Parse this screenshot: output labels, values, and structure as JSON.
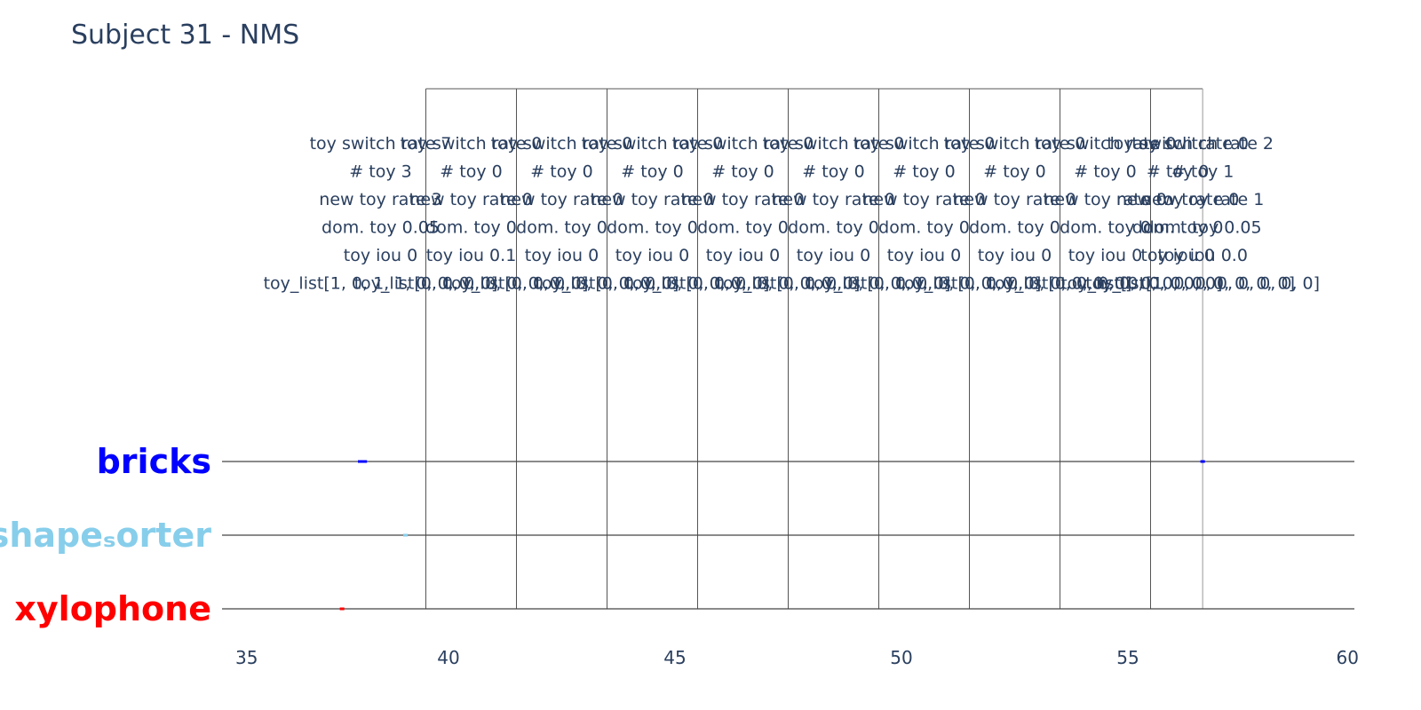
{
  "chart_data": {
    "type": "scatter",
    "title": "Subject 31 - NMS",
    "xlabel": "",
    "ylabel": "",
    "xlim": [
      35,
      60
    ],
    "xticks": [
      35,
      40,
      45,
      50,
      55,
      60
    ],
    "grid": false,
    "categories": [
      {
        "label": "bricks",
        "color": "#0000ff"
      },
      {
        "label": "shape_sorter",
        "display": "shapeₛorter",
        "color": "#87ceeb"
      },
      {
        "label": "xylophone",
        "color": "#ff0000"
      }
    ],
    "events": [
      {
        "category": "bricks",
        "start": 38.0,
        "end": 38.2
      },
      {
        "category": "shape_sorter",
        "start": 39.0,
        "end": 39.1
      },
      {
        "category": "xylophone",
        "start": 37.6,
        "end": 37.7
      },
      {
        "category": "bricks",
        "start": 56.6,
        "end": 56.7
      }
    ],
    "segment_boundaries": [
      39.5,
      41.5,
      43.5,
      45.5,
      47.5,
      49.5,
      51.5,
      53.5,
      55.5,
      56.65
    ],
    "annotations": [
      {
        "x": 38.5,
        "lines": [
          "toy switch rate 7",
          "# toy 3",
          "new toy rate 3",
          "dom. toy 0.05",
          "toy iou 0",
          "toy_list[1, 0, 1, 1, 0, 0, 0, 0]"
        ]
      },
      {
        "x": 40.5,
        "lines": [
          "toy switch rate 0",
          "# toy 0",
          "new toy rate 0",
          "dom. toy 0",
          "toy iou 0.1",
          "toy_list[0, 0, 0, 0, 0, 0, 0, 0]"
        ]
      },
      {
        "x": 42.5,
        "lines": [
          "toy switch rate 0",
          "# toy 0",
          "new toy rate 0",
          "dom. toy 0",
          "toy iou 0",
          "toy_list[0, 0, 0, 0, 0, 0, 0, 0]"
        ]
      },
      {
        "x": 44.5,
        "lines": [
          "toy switch rate 0",
          "# toy 0",
          "new toy rate 0",
          "dom. toy 0",
          "toy iou 0",
          "toy_list[0, 0, 0, 0, 0, 0, 0, 0]"
        ]
      },
      {
        "x": 46.5,
        "lines": [
          "toy switch rate 0",
          "# toy 0",
          "new toy rate 0",
          "dom. toy 0",
          "toy iou 0",
          "toy_list[0, 0, 0, 0, 0, 0, 0, 0]"
        ]
      },
      {
        "x": 48.5,
        "lines": [
          "toy switch rate 0",
          "# toy 0",
          "new toy rate 0",
          "dom. toy 0",
          "toy iou 0",
          "toy_list[0, 0, 0, 0, 0, 0, 0, 0]"
        ]
      },
      {
        "x": 50.5,
        "lines": [
          "toy switch rate 0",
          "# toy 0",
          "new toy rate 0",
          "dom. toy 0",
          "toy iou 0",
          "toy_list[0, 0, 0, 0, 0, 0, 0, 0]"
        ]
      },
      {
        "x": 52.5,
        "lines": [
          "toy switch rate 0",
          "# toy 0",
          "new toy rate 0",
          "dom. toy 0",
          "toy iou 0",
          "toy_list[0, 0, 0, 0, 0, 0, 0, 0]"
        ]
      },
      {
        "x": 54.5,
        "lines": [
          "toy switch rate 0",
          "# toy 0",
          "new toy rate 0",
          "dom. toy 0",
          "toy iou 0",
          "toy_list[0, 0, 0, 0, 0, 0, 0, 0]"
        ]
      },
      {
        "x": 56.1,
        "lines": [
          "toy switch rate 0",
          "# toy 0",
          "new toy rate 0",
          "dom. toy 0",
          "toy iou 0",
          "toy_list[0, 0, 0, 0, 0, 0, 0, 0]"
        ]
      },
      {
        "x": 56.65,
        "lines": [
          "toy switch rate 2",
          "# toy 1",
          "new toy rate 1",
          "dom. toy 0.05",
          "toy iou 0.0",
          "toy_list[1, 0, 0, 0, 0, 0, 0, 0]"
        ]
      }
    ]
  }
}
